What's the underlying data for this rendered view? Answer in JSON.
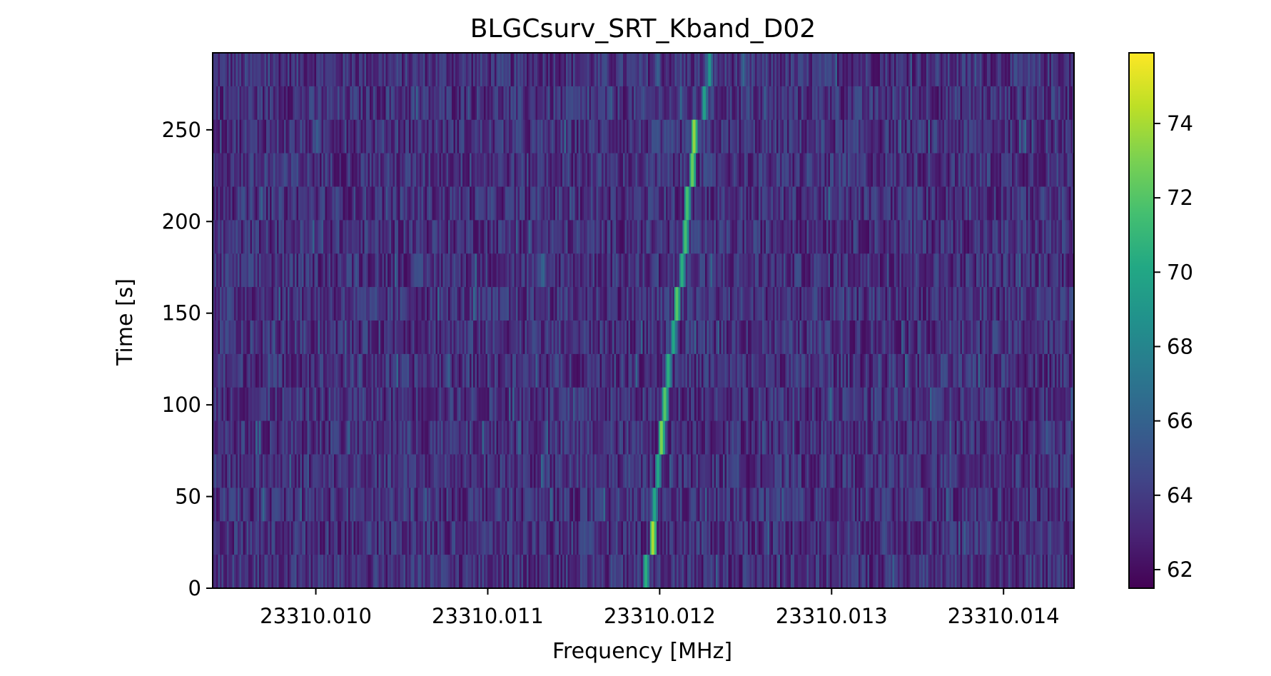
{
  "chart_data": {
    "type": "heatmap",
    "title": "BLGCsurv_SRT_Kband_D02",
    "xlabel": "Frequency [MHz]",
    "ylabel": "Time [s]",
    "xlim": [
      23310.0094,
      23310.01441
    ],
    "ylim": [
      0,
      292
    ],
    "x_ticks": [
      {
        "value": 23310.01,
        "label": "23310.010"
      },
      {
        "value": 23310.011,
        "label": "23310.011"
      },
      {
        "value": 23310.012,
        "label": "23310.012"
      },
      {
        "value": 23310.013,
        "label": "23310.013"
      },
      {
        "value": 23310.014,
        "label": "23310.014"
      }
    ],
    "y_ticks": [
      {
        "value": 0,
        "label": "0"
      },
      {
        "value": 50,
        "label": "50"
      },
      {
        "value": 100,
        "label": "100"
      },
      {
        "value": 150,
        "label": "150"
      },
      {
        "value": 200,
        "label": "200"
      },
      {
        "value": 250,
        "label": "250"
      }
    ],
    "colorbar": {
      "colormap": "viridis",
      "range": [
        61.5,
        75.9
      ],
      "ticks": [
        {
          "value": 62,
          "label": "62"
        },
        {
          "value": 64,
          "label": "64"
        },
        {
          "value": 66,
          "label": "66"
        },
        {
          "value": 68,
          "label": "68"
        },
        {
          "value": 70,
          "label": "70"
        },
        {
          "value": 72,
          "label": "72"
        },
        {
          "value": 74,
          "label": "74"
        }
      ]
    },
    "background_level": 63.5,
    "n_time_bins": 16,
    "time_bin_s": 18.25,
    "signal": {
      "description_values": "drifting narrowband signal",
      "points": [
        {
          "time": 9.1,
          "frequency": 23310.01192,
          "power": 70.5
        },
        {
          "time": 27.4,
          "frequency": 23310.01196,
          "power": 74.0
        },
        {
          "time": 45.6,
          "frequency": 23310.01197,
          "power": 70.0
        },
        {
          "time": 63.9,
          "frequency": 23310.01199,
          "power": 70.0
        },
        {
          "time": 82.1,
          "frequency": 23310.01201,
          "power": 73.0
        },
        {
          "time": 100.4,
          "frequency": 23310.01203,
          "power": 72.0
        },
        {
          "time": 118.6,
          "frequency": 23310.01205,
          "power": 70.5
        },
        {
          "time": 136.9,
          "frequency": 23310.01208,
          "power": 70.0
        },
        {
          "time": 155.1,
          "frequency": 23310.0121,
          "power": 72.0
        },
        {
          "time": 173.4,
          "frequency": 23310.01213,
          "power": 70.5
        },
        {
          "time": 191.6,
          "frequency": 23310.01215,
          "power": 71.5
        },
        {
          "time": 209.9,
          "frequency": 23310.01216,
          "power": 71.5
        },
        {
          "time": 228.1,
          "frequency": 23310.01219,
          "power": 72.5
        },
        {
          "time": 246.4,
          "frequency": 23310.0122,
          "power": 73.5
        },
        {
          "time": 264.6,
          "frequency": 23310.01226,
          "power": 69.5
        },
        {
          "time": 282.9,
          "frequency": 23310.01229,
          "power": 69.0
        }
      ]
    }
  }
}
